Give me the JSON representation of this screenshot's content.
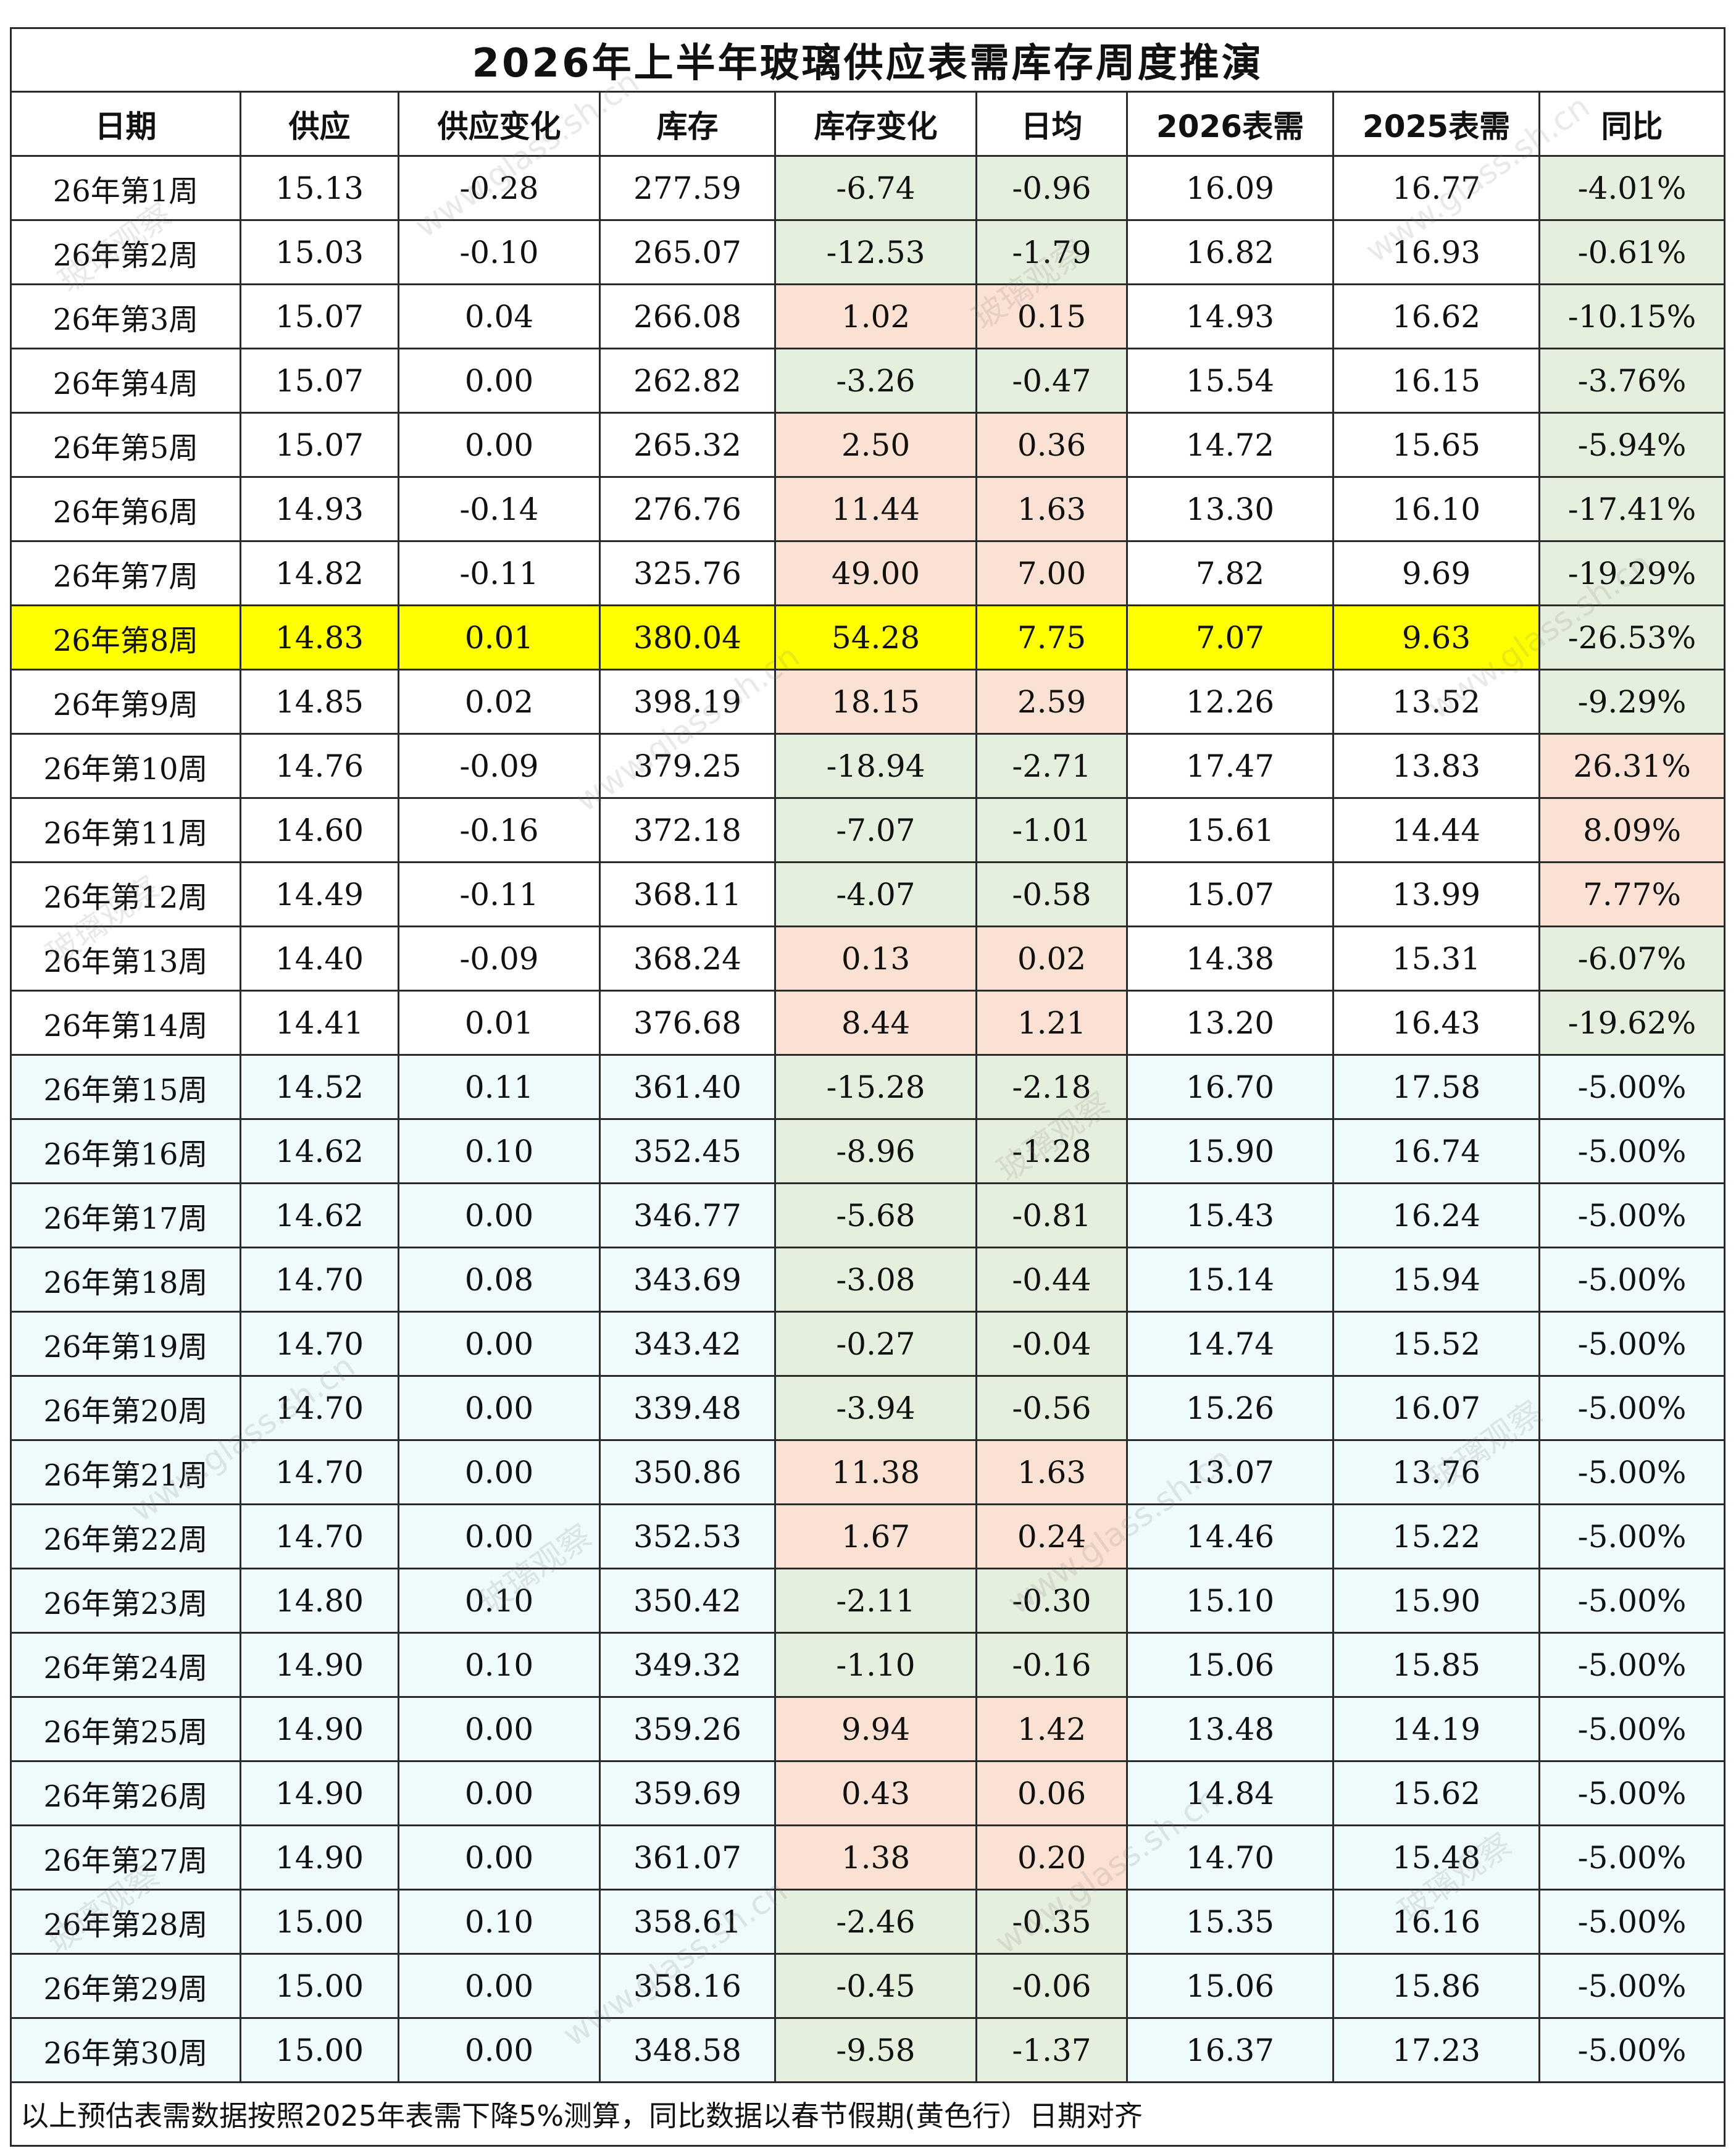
{
  "title": "2026年上半年玻璃供应表需库存周度推演",
  "headers": [
    "日期",
    "供应",
    "供应变化",
    "库存",
    "库存变化",
    "日均",
    "2026表需",
    "2025表需",
    "同比"
  ],
  "rows": [
    {
      "date": "26年第1周",
      "supply": "15.13",
      "supply_chg": "-0.28",
      "inventory": "277.59",
      "inv_chg": "-6.74",
      "daily": "-0.96",
      "d2026": "16.09",
      "d2025": "16.77",
      "yoy": "-4.01%",
      "inv_trend": "down",
      "yoy_trend": "down",
      "style": "white"
    },
    {
      "date": "26年第2周",
      "supply": "15.03",
      "supply_chg": "-0.10",
      "inventory": "265.07",
      "inv_chg": "-12.53",
      "daily": "-1.79",
      "d2026": "16.82",
      "d2025": "16.93",
      "yoy": "-0.61%",
      "inv_trend": "down",
      "yoy_trend": "down",
      "style": "white"
    },
    {
      "date": "26年第3周",
      "supply": "15.07",
      "supply_chg": "0.04",
      "inventory": "266.08",
      "inv_chg": "1.02",
      "daily": "0.15",
      "d2026": "14.93",
      "d2025": "16.62",
      "yoy": "-10.15%",
      "inv_trend": "up",
      "yoy_trend": "down",
      "style": "white"
    },
    {
      "date": "26年第4周",
      "supply": "15.07",
      "supply_chg": "0.00",
      "inventory": "262.82",
      "inv_chg": "-3.26",
      "daily": "-0.47",
      "d2026": "15.54",
      "d2025": "16.15",
      "yoy": "-3.76%",
      "inv_trend": "down",
      "yoy_trend": "down",
      "style": "white"
    },
    {
      "date": "26年第5周",
      "supply": "15.07",
      "supply_chg": "0.00",
      "inventory": "265.32",
      "inv_chg": "2.50",
      "daily": "0.36",
      "d2026": "14.72",
      "d2025": "15.65",
      "yoy": "-5.94%",
      "inv_trend": "up",
      "yoy_trend": "down",
      "style": "white"
    },
    {
      "date": "26年第6周",
      "supply": "14.93",
      "supply_chg": "-0.14",
      "inventory": "276.76",
      "inv_chg": "11.44",
      "daily": "1.63",
      "d2026": "13.30",
      "d2025": "16.10",
      "yoy": "-17.41%",
      "inv_trend": "up",
      "yoy_trend": "down",
      "style": "white"
    },
    {
      "date": "26年第7周",
      "supply": "14.82",
      "supply_chg": "-0.11",
      "inventory": "325.76",
      "inv_chg": "49.00",
      "daily": "7.00",
      "d2026": "7.82",
      "d2025": "9.69",
      "yoy": "-19.29%",
      "inv_trend": "up",
      "yoy_trend": "down",
      "style": "white"
    },
    {
      "date": "26年第8周",
      "supply": "14.83",
      "supply_chg": "0.01",
      "inventory": "380.04",
      "inv_chg": "54.28",
      "daily": "7.75",
      "d2026": "7.07",
      "d2025": "9.63",
      "yoy": "-26.53%",
      "inv_trend": "none",
      "yoy_trend": "down",
      "style": "highlight"
    },
    {
      "date": "26年第9周",
      "supply": "14.85",
      "supply_chg": "0.02",
      "inventory": "398.19",
      "inv_chg": "18.15",
      "daily": "2.59",
      "d2026": "12.26",
      "d2025": "13.52",
      "yoy": "-9.29%",
      "inv_trend": "up",
      "yoy_trend": "down",
      "style": "white"
    },
    {
      "date": "26年第10周",
      "supply": "14.76",
      "supply_chg": "-0.09",
      "inventory": "379.25",
      "inv_chg": "-18.94",
      "daily": "-2.71",
      "d2026": "17.47",
      "d2025": "13.83",
      "yoy": "26.31%",
      "inv_trend": "down",
      "yoy_trend": "up",
      "style": "white"
    },
    {
      "date": "26年第11周",
      "supply": "14.60",
      "supply_chg": "-0.16",
      "inventory": "372.18",
      "inv_chg": "-7.07",
      "daily": "-1.01",
      "d2026": "15.61",
      "d2025": "14.44",
      "yoy": "8.09%",
      "inv_trend": "down",
      "yoy_trend": "up",
      "style": "white"
    },
    {
      "date": "26年第12周",
      "supply": "14.49",
      "supply_chg": "-0.11",
      "inventory": "368.11",
      "inv_chg": "-4.07",
      "daily": "-0.58",
      "d2026": "15.07",
      "d2025": "13.99",
      "yoy": "7.77%",
      "inv_trend": "down",
      "yoy_trend": "up",
      "style": "white"
    },
    {
      "date": "26年第13周",
      "supply": "14.40",
      "supply_chg": "-0.09",
      "inventory": "368.24",
      "inv_chg": "0.13",
      "daily": "0.02",
      "d2026": "14.38",
      "d2025": "15.31",
      "yoy": "-6.07%",
      "inv_trend": "up",
      "yoy_trend": "down",
      "style": "white"
    },
    {
      "date": "26年第14周",
      "supply": "14.41",
      "supply_chg": "0.01",
      "inventory": "376.68",
      "inv_chg": "8.44",
      "daily": "1.21",
      "d2026": "13.20",
      "d2025": "16.43",
      "yoy": "-19.62%",
      "inv_trend": "up",
      "yoy_trend": "down",
      "style": "white"
    },
    {
      "date": "26年第15周",
      "supply": "14.52",
      "supply_chg": "0.11",
      "inventory": "361.40",
      "inv_chg": "-15.28",
      "daily": "-2.18",
      "d2026": "16.70",
      "d2025": "17.58",
      "yoy": "-5.00%",
      "inv_trend": "down",
      "yoy_trend": "none",
      "style": "blue"
    },
    {
      "date": "26年第16周",
      "supply": "14.62",
      "supply_chg": "0.10",
      "inventory": "352.45",
      "inv_chg": "-8.96",
      "daily": "-1.28",
      "d2026": "15.90",
      "d2025": "16.74",
      "yoy": "-5.00%",
      "inv_trend": "down",
      "yoy_trend": "none",
      "style": "blue"
    },
    {
      "date": "26年第17周",
      "supply": "14.62",
      "supply_chg": "0.00",
      "inventory": "346.77",
      "inv_chg": "-5.68",
      "daily": "-0.81",
      "d2026": "15.43",
      "d2025": "16.24",
      "yoy": "-5.00%",
      "inv_trend": "down",
      "yoy_trend": "none",
      "style": "blue"
    },
    {
      "date": "26年第18周",
      "supply": "14.70",
      "supply_chg": "0.08",
      "inventory": "343.69",
      "inv_chg": "-3.08",
      "daily": "-0.44",
      "d2026": "15.14",
      "d2025": "15.94",
      "yoy": "-5.00%",
      "inv_trend": "down",
      "yoy_trend": "none",
      "style": "blue"
    },
    {
      "date": "26年第19周",
      "supply": "14.70",
      "supply_chg": "0.00",
      "inventory": "343.42",
      "inv_chg": "-0.27",
      "daily": "-0.04",
      "d2026": "14.74",
      "d2025": "15.52",
      "yoy": "-5.00%",
      "inv_trend": "down",
      "yoy_trend": "none",
      "style": "blue"
    },
    {
      "date": "26年第20周",
      "supply": "14.70",
      "supply_chg": "0.00",
      "inventory": "339.48",
      "inv_chg": "-3.94",
      "daily": "-0.56",
      "d2026": "15.26",
      "d2025": "16.07",
      "yoy": "-5.00%",
      "inv_trend": "down",
      "yoy_trend": "none",
      "style": "blue"
    },
    {
      "date": "26年第21周",
      "supply": "14.70",
      "supply_chg": "0.00",
      "inventory": "350.86",
      "inv_chg": "11.38",
      "daily": "1.63",
      "d2026": "13.07",
      "d2025": "13.76",
      "yoy": "-5.00%",
      "inv_trend": "up",
      "yoy_trend": "none",
      "style": "blue"
    },
    {
      "date": "26年第22周",
      "supply": "14.70",
      "supply_chg": "0.00",
      "inventory": "352.53",
      "inv_chg": "1.67",
      "daily": "0.24",
      "d2026": "14.46",
      "d2025": "15.22",
      "yoy": "-5.00%",
      "inv_trend": "up",
      "yoy_trend": "none",
      "style": "blue"
    },
    {
      "date": "26年第23周",
      "supply": "14.80",
      "supply_chg": "0.10",
      "inventory": "350.42",
      "inv_chg": "-2.11",
      "daily": "-0.30",
      "d2026": "15.10",
      "d2025": "15.90",
      "yoy": "-5.00%",
      "inv_trend": "down",
      "yoy_trend": "none",
      "style": "blue"
    },
    {
      "date": "26年第24周",
      "supply": "14.90",
      "supply_chg": "0.10",
      "inventory": "349.32",
      "inv_chg": "-1.10",
      "daily": "-0.16",
      "d2026": "15.06",
      "d2025": "15.85",
      "yoy": "-5.00%",
      "inv_trend": "down",
      "yoy_trend": "none",
      "style": "blue"
    },
    {
      "date": "26年第25周",
      "supply": "14.90",
      "supply_chg": "0.00",
      "inventory": "359.26",
      "inv_chg": "9.94",
      "daily": "1.42",
      "d2026": "13.48",
      "d2025": "14.19",
      "yoy": "-5.00%",
      "inv_trend": "up",
      "yoy_trend": "none",
      "style": "blue"
    },
    {
      "date": "26年第26周",
      "supply": "14.90",
      "supply_chg": "0.00",
      "inventory": "359.69",
      "inv_chg": "0.43",
      "daily": "0.06",
      "d2026": "14.84",
      "d2025": "15.62",
      "yoy": "-5.00%",
      "inv_trend": "up",
      "yoy_trend": "none",
      "style": "blue"
    },
    {
      "date": "26年第27周",
      "supply": "14.90",
      "supply_chg": "0.00",
      "inventory": "361.07",
      "inv_chg": "1.38",
      "daily": "0.20",
      "d2026": "14.70",
      "d2025": "15.48",
      "yoy": "-5.00%",
      "inv_trend": "up",
      "yoy_trend": "none",
      "style": "blue"
    },
    {
      "date": "26年第28周",
      "supply": "15.00",
      "supply_chg": "0.10",
      "inventory": "358.61",
      "inv_chg": "-2.46",
      "daily": "-0.35",
      "d2026": "15.35",
      "d2025": "16.16",
      "yoy": "-5.00%",
      "inv_trend": "down",
      "yoy_trend": "none",
      "style": "blue"
    },
    {
      "date": "26年第29周",
      "supply": "15.00",
      "supply_chg": "0.00",
      "inventory": "358.16",
      "inv_chg": "-0.45",
      "daily": "-0.06",
      "d2026": "15.06",
      "d2025": "15.86",
      "yoy": "-5.00%",
      "inv_trend": "down",
      "yoy_trend": "none",
      "style": "blue"
    },
    {
      "date": "26年第30周",
      "supply": "15.00",
      "supply_chg": "0.00",
      "inventory": "348.58",
      "inv_chg": "-9.58",
      "daily": "-1.37",
      "d2026": "16.37",
      "d2025": "17.23",
      "yoy": "-5.00%",
      "inv_trend": "down",
      "yoy_trend": "none",
      "style": "blue"
    }
  ],
  "note": "以上预估表需数据按照2025年表需下降5%测算，同比数据以春节假期(黄色行）日期对齐",
  "watermark": {
    "brand": "玻璃观察",
    "url": "www.glass.sh.cn"
  },
  "colors": {
    "highlight_row": "#ffff00",
    "forecast_row": "#eefafc",
    "decrease_cell": "#e4efdd",
    "increase_cell": "#fbe1d3",
    "border": "#2b2b2b"
  }
}
